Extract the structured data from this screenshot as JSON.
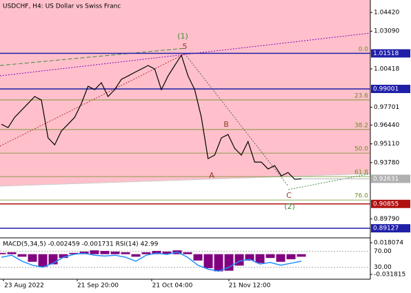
{
  "chart_data": {
    "type": "line",
    "title": "USDCHF, H4:  US Dollar vs Swiss Franc",
    "color": "#000000",
    "values": [
      0.965,
      0.9626,
      0.9699,
      0.9748,
      0.9797,
      0.9846,
      0.9821,
      0.9553,
      0.9504,
      0.9602,
      0.965,
      0.9699,
      0.9797,
      0.9919,
      0.9895,
      0.9944,
      0.9846,
      0.9895,
      0.9968,
      0.9992,
      1.0017,
      1.0041,
      1.0066,
      1.0041,
      0.9895,
      0.9992,
      1.0066,
      1.0139,
      0.9992,
      0.9895,
      0.9699,
      0.9406,
      0.9431,
      0.9553,
      0.9577,
      0.9479,
      0.9431,
      0.9528,
      0.9382,
      0.9382,
      0.9333,
      0.9357,
      0.9284,
      0.9308,
      0.926,
      0.9263
    ],
    "ylim": [
      0.8845,
      1.053
    ],
    "yticks": [
      {
        "value": 1.0442,
        "label": "1.04420"
      },
      {
        "value": 1.0309,
        "label": "1.03090"
      },
      {
        "value": 1.00418,
        "label": "1.00418"
      },
      {
        "value": 0.97701,
        "label": "0.97701"
      },
      {
        "value": 0.9644,
        "label": "0.96440"
      },
      {
        "value": 0.9511,
        "label": "0.95110"
      },
      {
        "value": 0.9378,
        "label": "0.93780"
      },
      {
        "value": 0.8979,
        "label": "0.89790"
      }
    ],
    "xlabels": [
      "23 Aug 2022",
      "21 Sep 20:00",
      "21 Oct 04:00",
      "21 Nov 12:00"
    ],
    "levels": [
      {
        "value": 1.01518,
        "label": "1.01518",
        "color": "#1f1fa8"
      },
      {
        "value": 0.99001,
        "label": "0.99001",
        "color": "#1f1fa8"
      },
      {
        "value": 0.90855,
        "label": "0.90855",
        "color": "#b01010"
      },
      {
        "value": 0.89127,
        "label": "0.89127",
        "color": "#1f1fa8"
      }
    ],
    "current": {
      "value": 0.92631,
      "label": "0.92631",
      "color": "#b0b0b0"
    },
    "fib": [
      {
        "value": 1.01518,
        "label": "0.0"
      },
      {
        "value": 0.9822,
        "label": "23.6"
      },
      {
        "value": 0.9612,
        "label": "38.2"
      },
      {
        "value": 0.9445,
        "label": "50.0"
      },
      {
        "value": 0.9279,
        "label": "61.8"
      },
      {
        "value": 0.9113,
        "label": "76.0"
      }
    ],
    "annotations": [
      {
        "text": "(1)",
        "color": "#3c8c3c"
      },
      {
        "text": "5",
        "color": "#8b3a2a"
      },
      {
        "text": "A",
        "color": "#8b3a2a"
      },
      {
        "text": "B",
        "color": "#8b3a2a"
      },
      {
        "text": "C",
        "color": "#8b3a2a"
      },
      {
        "text": "(2)",
        "color": "#3c8c3c"
      }
    ],
    "indicator": {
      "label": "MACD(5,34,5) -0.002459 -0.001731 RSI(14) 42.99",
      "hist_color": "#800080",
      "rsi_color": "#1e90ff",
      "hist": [
        0.002,
        0.003,
        -0.004,
        -0.012,
        -0.02,
        -0.016,
        -0.006,
        0.002,
        0.004,
        0.006,
        0.005,
        0.004,
        0.003,
        -0.004,
        0.003,
        0.005,
        0.004,
        0.006,
        0.003,
        -0.01,
        -0.022,
        -0.027,
        -0.026,
        -0.018,
        -0.01,
        -0.014,
        -0.006,
        -0.012,
        -0.008,
        -0.004
      ],
      "rsi": [
        55,
        60,
        45,
        35,
        30,
        40,
        55,
        62,
        65,
        60,
        58,
        60,
        55,
        45,
        60,
        65,
        62,
        68,
        55,
        35,
        25,
        20,
        30,
        45,
        50,
        38,
        42,
        35,
        40,
        45
      ],
      "ylim": [
        -0.03941,
        0.0235
      ],
      "yticks": [
        0.018074,
        -0.031815
      ],
      "rsi_lim": [
        0,
        100
      ],
      "rsi_ticks": [
        {
          "value": 70,
          "label": "70.00"
        },
        {
          "value": 30,
          "label": "30.00"
        }
      ]
    }
  }
}
